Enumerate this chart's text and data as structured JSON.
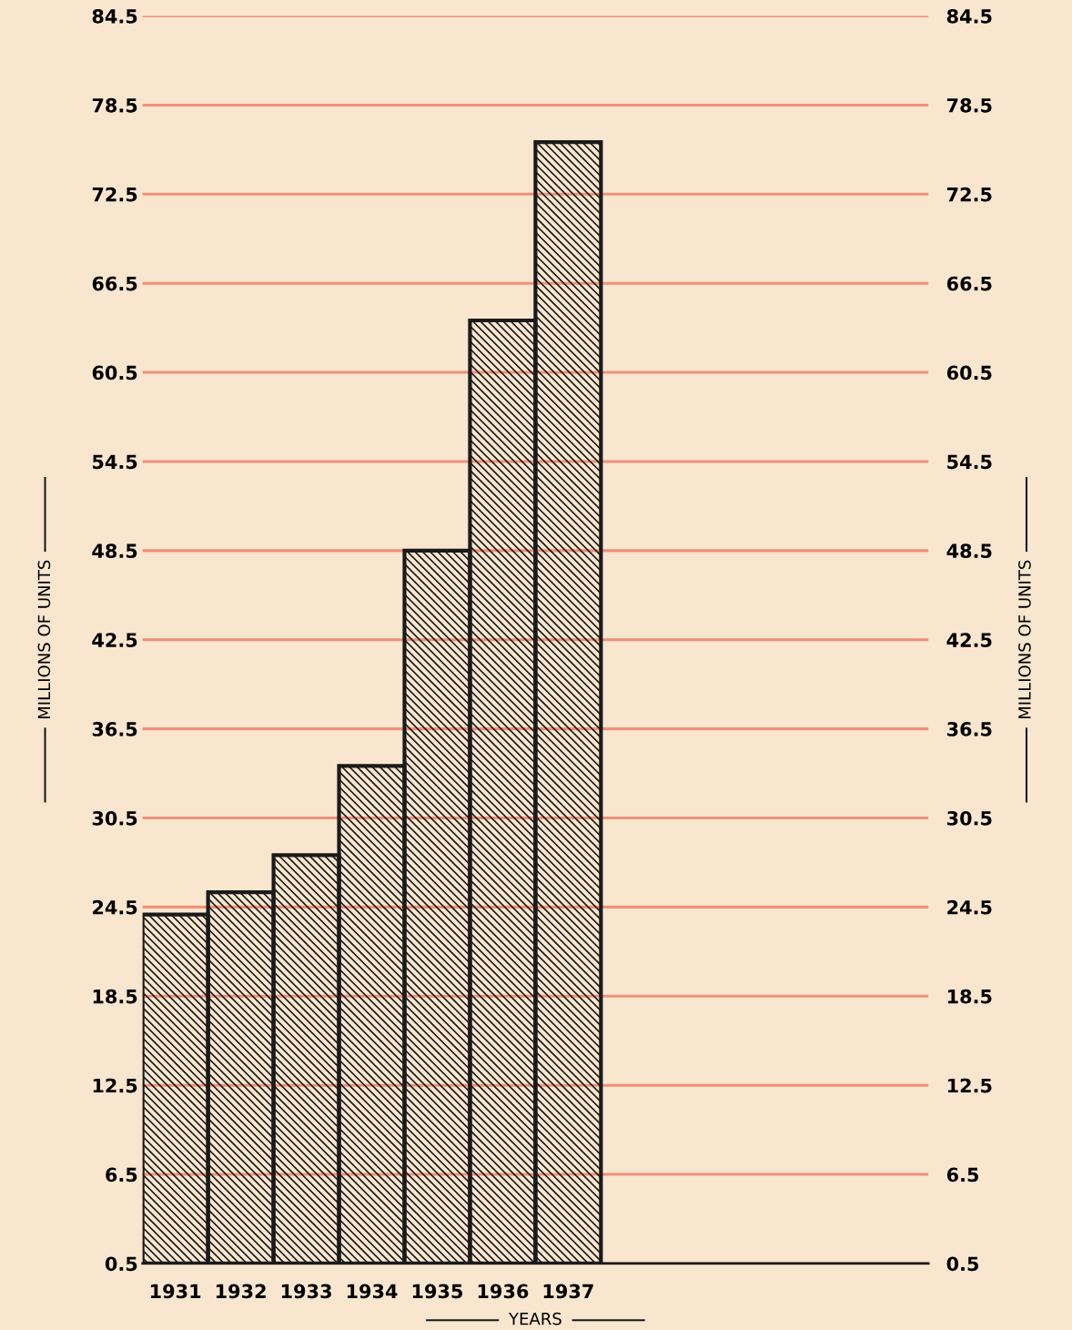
{
  "chart_data": {
    "type": "bar",
    "xlabel": "YEARS",
    "ylabel": "MILLIONS OF UNITS",
    "y2label": "MILLIONS OF UNITS",
    "categories": [
      "1931",
      "1932",
      "1933",
      "1934",
      "1935",
      "1936",
      "1937",
      null,
      null,
      null,
      null,
      null
    ],
    "values": [
      24,
      25.5,
      28,
      34,
      48.5,
      64,
      76,
      null,
      null,
      null,
      null,
      null
    ],
    "color": "#1a1a1a",
    "ylim": [
      0.5,
      84.5
    ],
    "yticks": [
      0.5,
      6.5,
      12.5,
      18.5,
      24.5,
      30.5,
      36.5,
      42.5,
      48.5,
      54.5,
      60.5,
      66.5,
      72.5,
      78.5,
      84.5
    ],
    "y2lim": [
      0.5,
      84.5
    ],
    "y2ticks": [
      0.5,
      6.5,
      12.5,
      18.5,
      24.5,
      30.5,
      36.5,
      42.5,
      48.5,
      54.5,
      60.5,
      66.5,
      72.5,
      78.5,
      84.5
    ],
    "grid": "y"
  }
}
